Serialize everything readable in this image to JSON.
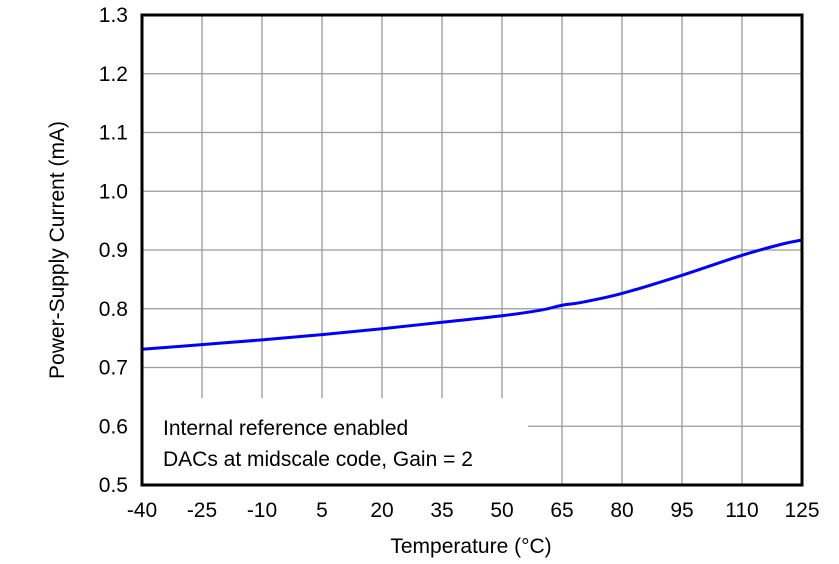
{
  "chart_data": {
    "type": "line",
    "title": "",
    "xlabel": "Temperature (°C)",
    "ylabel": "Power-Supply Current (mA)",
    "xlim": [
      -40,
      125
    ],
    "ylim": [
      0.5,
      1.3
    ],
    "xticks": [
      -40,
      -25,
      -10,
      5,
      20,
      35,
      50,
      65,
      80,
      95,
      110,
      125
    ],
    "yticks": [
      "0.5",
      "0.6",
      "0.7",
      "0.8",
      "0.9",
      "1.0",
      "1.1",
      "1.2",
      "1.3"
    ],
    "grid": true,
    "annotation": [
      "Internal reference enabled",
      "DACs at midscale code, Gain = 2"
    ],
    "series": [
      {
        "color": "#0000ff",
        "x": [
          -40,
          -25,
          -10,
          5,
          20,
          35,
          50,
          60,
          65,
          70,
          80,
          95,
          110,
          120,
          125
        ],
        "y": [
          0.731,
          0.739,
          0.747,
          0.756,
          0.766,
          0.777,
          0.788,
          0.798,
          0.806,
          0.811,
          0.826,
          0.857,
          0.891,
          0.91,
          0.917
        ]
      }
    ]
  }
}
